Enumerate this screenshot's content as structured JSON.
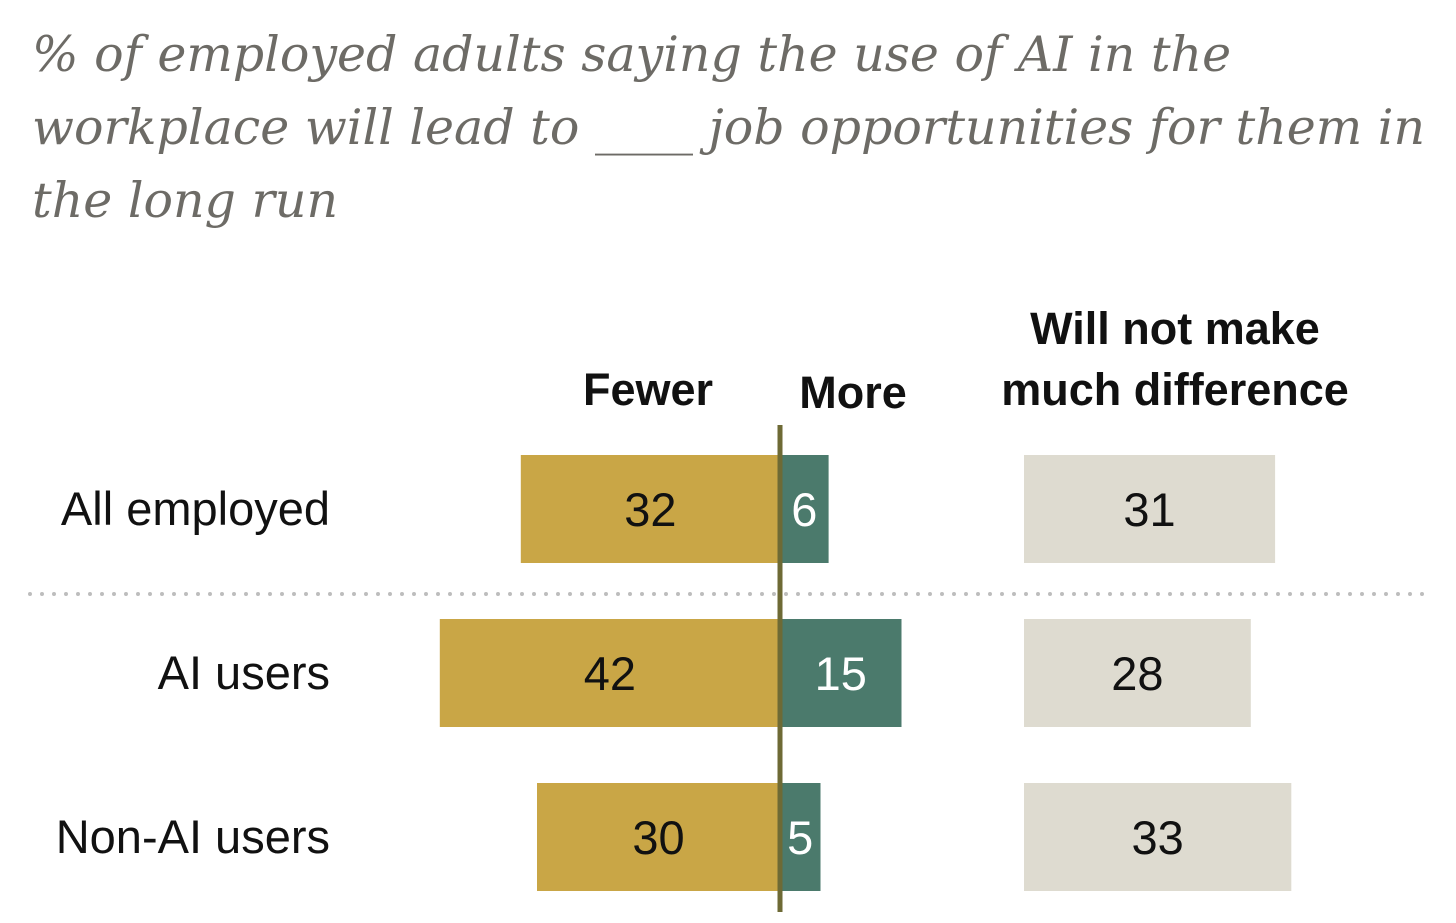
{
  "chart_data": {
    "type": "bar",
    "title": "% of employed adults saying the use of AI in the workplace will lead to ____ job opportunities for them in the long run",
    "categories": [
      "All employed",
      "AI users",
      "Non-AI users"
    ],
    "series": [
      {
        "name": "Fewer",
        "values": [
          32,
          42,
          30
        ]
      },
      {
        "name": "More",
        "values": [
          6,
          15,
          5
        ]
      },
      {
        "name": "Will not make much difference",
        "values": [
          31,
          28,
          33
        ]
      }
    ],
    "column_headers": {
      "fewer": "Fewer",
      "more": "More",
      "no_difference_line1": "Will not make",
      "no_difference_line2": "much difference"
    },
    "colors": {
      "fewer": "#c9a646",
      "more": "#4b7a6c",
      "no_difference": "#dedbd0",
      "axis": "#6e6a35",
      "title": "#6d6b66",
      "separator": "#bdbdbd"
    },
    "layout_hint": "diverging bars: Fewer extends left of a center axis, More extends right; 'Will not make much difference' shown as a separate column"
  }
}
